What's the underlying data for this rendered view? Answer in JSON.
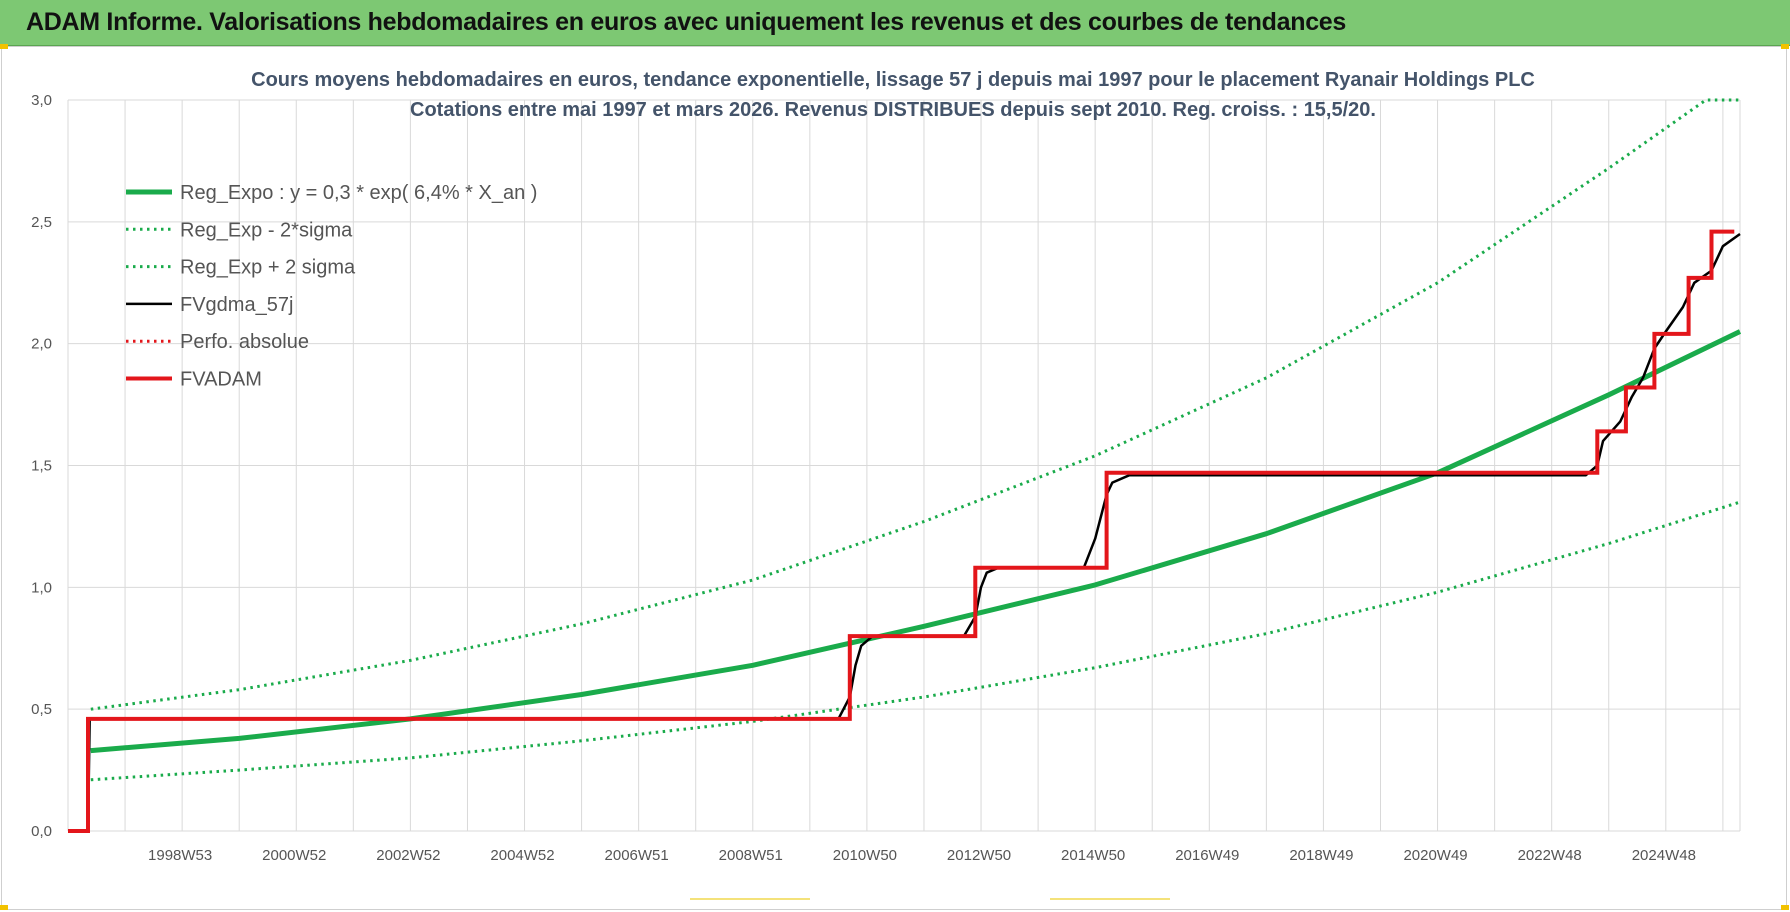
{
  "banner": {
    "title": "ADAM Informe. Valorisations hebdomadaires en euros avec uniquement les revenus et des courbes de tendances"
  },
  "colors": {
    "banner_bg": "#7dc873",
    "trend_green": "#1aab4b",
    "fv_black": "#000000",
    "fvadam_red": "#e3161b",
    "grid": "#d9d9d9"
  },
  "chart_data": {
    "type": "line",
    "title": [
      "Cours moyens hebdomadaires en euros, tendance exponentielle, lissage 57 j depuis mai 1997 pour le placement Ryanair Holdings PLC",
      "Cotations entre mai 1997 et mars 2026. Revenus DISTRIBUES depuis sept 2010. Reg. croiss. : 15,5/20."
    ],
    "xlabel": "",
    "ylabel": "",
    "x_range": [
      1997.0,
      2026.3
    ],
    "ylim": [
      0,
      3.0
    ],
    "grid": true,
    "legend_position": "top-left",
    "x_tick_labels": [
      {
        "label": "1998W53",
        "x": 1999.0
      },
      {
        "label": "2000W52",
        "x": 2001.0
      },
      {
        "label": "2002W52",
        "x": 2003.0
      },
      {
        "label": "2004W52",
        "x": 2005.0
      },
      {
        "label": "2006W51",
        "x": 2007.0
      },
      {
        "label": "2008W51",
        "x": 2009.0
      },
      {
        "label": "2010W50",
        "x": 2011.0
      },
      {
        "label": "2012W50",
        "x": 2013.0
      },
      {
        "label": "2014W50",
        "x": 2015.0
      },
      {
        "label": "2016W49",
        "x": 2017.0
      },
      {
        "label": "2018W49",
        "x": 2019.0
      },
      {
        "label": "2020W49",
        "x": 2021.0
      },
      {
        "label": "2022W48",
        "x": 2023.0
      },
      {
        "label": "2024W48",
        "x": 2025.0
      }
    ],
    "y_tick_labels": [
      "0,0",
      "0,5",
      "1,0",
      "1,5",
      "2,0",
      "2,5",
      "3,0"
    ],
    "y_ticks": [
      0,
      0.5,
      1.0,
      1.5,
      2.0,
      2.5,
      3.0
    ],
    "series": [
      {
        "name": "Reg_Expo : y = 0,3 * exp( 6,4% *  X_an )",
        "style": "solid-thick",
        "color": "#1aab4b",
        "x": [
          1997.4,
          2000,
          2003,
          2006,
          2009,
          2012,
          2015,
          2018,
          2021,
          2024,
          2026.3
        ],
        "y": [
          0.33,
          0.38,
          0.46,
          0.56,
          0.68,
          0.84,
          1.01,
          1.22,
          1.47,
          1.79,
          2.05
        ]
      },
      {
        "name": "Reg_Exp - 2*sigma",
        "style": "dotted",
        "color": "#1aab4b",
        "x": [
          1997.4,
          2000,
          2003,
          2006,
          2009,
          2012,
          2015,
          2018,
          2021,
          2024,
          2026.3
        ],
        "y": [
          0.21,
          0.25,
          0.3,
          0.37,
          0.45,
          0.55,
          0.67,
          0.81,
          0.98,
          1.18,
          1.35
        ]
      },
      {
        "name": "Reg_Exp + 2 sigma",
        "style": "dotted",
        "color": "#1aab4b",
        "x": [
          1997.4,
          2000,
          2003,
          2006,
          2009,
          2012,
          2015,
          2018,
          2021,
          2024,
          2025.7,
          2026.3
        ],
        "y": [
          0.5,
          0.58,
          0.7,
          0.85,
          1.03,
          1.27,
          1.54,
          1.86,
          2.25,
          2.72,
          3.0,
          3.0
        ]
      },
      {
        "name": "FVgdma_57j",
        "style": "solid",
        "color": "#000000",
        "x": [
          1997.0,
          1997.35,
          1997.38,
          1997.5,
          2010.5,
          2010.7,
          2010.8,
          2010.9,
          2011.1,
          2012.7,
          2012.9,
          2013.0,
          2013.1,
          2013.3,
          2014.8,
          2015.0,
          2015.2,
          2015.3,
          2015.6,
          2023.6,
          2023.8,
          2023.9,
          2024.2,
          2024.4,
          2024.6,
          2024.8,
          2025.0,
          2025.3,
          2025.5,
          2025.8,
          2026.0,
          2026.3
        ],
        "y": [
          0.0,
          0.0,
          0.46,
          0.46,
          0.46,
          0.55,
          0.68,
          0.76,
          0.8,
          0.8,
          0.88,
          1.0,
          1.06,
          1.08,
          1.08,
          1.2,
          1.38,
          1.43,
          1.46,
          1.46,
          1.5,
          1.6,
          1.68,
          1.78,
          1.86,
          1.98,
          2.05,
          2.15,
          2.25,
          2.3,
          2.4,
          2.45
        ]
      },
      {
        "name": "Perfo. absolue",
        "style": "dotted",
        "color": "#e3161b",
        "x": [],
        "y": []
      },
      {
        "name": "FVADAM",
        "style": "solid-thick",
        "color": "#e3161b",
        "x": [
          1997.0,
          1997.35,
          1997.35,
          2010.7,
          2010.7,
          2012.9,
          2012.9,
          2015.2,
          2015.2,
          2023.8,
          2023.8,
          2024.3,
          2024.3,
          2024.8,
          2024.8,
          2025.4,
          2025.4,
          2025.8,
          2025.8,
          2026.0,
          2026.0,
          2026.2
        ],
        "y": [
          0.0,
          0.0,
          0.46,
          0.46,
          0.8,
          0.8,
          1.08,
          1.08,
          1.47,
          1.47,
          1.64,
          1.64,
          1.82,
          1.82,
          2.04,
          2.04,
          2.27,
          2.27,
          2.46,
          2.46,
          2.46,
          2.46
        ]
      }
    ]
  }
}
